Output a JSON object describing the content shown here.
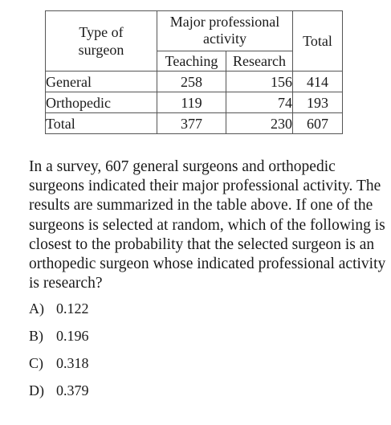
{
  "table": {
    "header": {
      "type_line1": "Type of",
      "type_line2": "surgeon",
      "major_line1": "Major professional",
      "major_line2": "activity",
      "teaching": "Teaching",
      "research": "Research",
      "total": "Total"
    },
    "rows": [
      {
        "label": "General",
        "teaching": "258",
        "research": "156",
        "total": "414"
      },
      {
        "label": "Orthopedic",
        "teaching": "119",
        "research": "74",
        "total": "193"
      },
      {
        "label": "Total",
        "teaching": "377",
        "research": "230",
        "total": "607"
      }
    ]
  },
  "question": {
    "text": "In a survey, 607 general surgeons and orthopedic surgeons indicated their major professional activity. The results are summarized in the table above. If one of the surgeons is selected at random, which of the following is closest to the probability that the selected surgeon is an orthopedic surgeon whose indicated professional activity is research?"
  },
  "choices": [
    {
      "letter": "A)",
      "value": "0.122"
    },
    {
      "letter": "B)",
      "value": "0.196"
    },
    {
      "letter": "C)",
      "value": "0.318"
    },
    {
      "letter": "D)",
      "value": "0.379"
    }
  ]
}
